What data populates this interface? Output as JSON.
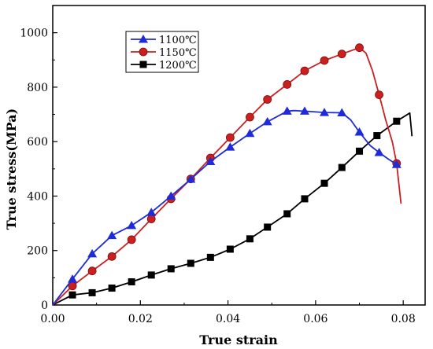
{
  "chart_data": {
    "type": "line",
    "xlabel": "True strain",
    "ylabel": "True stress(MPa)",
    "xlim": [
      0.0,
      0.085
    ],
    "ylim": [
      0,
      1100
    ],
    "x_ticks": [
      0.0,
      0.02,
      0.04,
      0.06,
      0.08
    ],
    "x_tick_labels": [
      "0.00",
      "0.02",
      "0.04",
      "0.06",
      "0.08"
    ],
    "y_ticks": [
      0,
      200,
      400,
      600,
      800,
      1000
    ],
    "y_tick_labels": [
      "0",
      "200",
      "400",
      "600",
      "800",
      "1000"
    ],
    "legend_position": "top-left",
    "series": [
      {
        "name": "1100℃",
        "color": "#1f2bd6",
        "marker": "triangle",
        "line": [
          [
            0.0,
            0
          ],
          [
            0.0045,
            95
          ],
          [
            0.009,
            188
          ],
          [
            0.0135,
            255
          ],
          [
            0.018,
            292
          ],
          [
            0.0225,
            340
          ],
          [
            0.027,
            400
          ],
          [
            0.0315,
            462
          ],
          [
            0.036,
            527
          ],
          [
            0.0405,
            580
          ],
          [
            0.045,
            630
          ],
          [
            0.049,
            673
          ],
          [
            0.0535,
            712
          ],
          [
            0.055,
            714
          ],
          [
            0.0575,
            712
          ],
          [
            0.062,
            707
          ],
          [
            0.066,
            706
          ],
          [
            0.068,
            680
          ],
          [
            0.07,
            635
          ],
          [
            0.0725,
            585
          ],
          [
            0.0745,
            560
          ],
          [
            0.0765,
            537
          ],
          [
            0.0785,
            516
          ]
        ],
        "markers": [
          [
            0.0045,
            95
          ],
          [
            0.009,
            188
          ],
          [
            0.0135,
            255
          ],
          [
            0.018,
            292
          ],
          [
            0.0225,
            340
          ],
          [
            0.027,
            400
          ],
          [
            0.0315,
            462
          ],
          [
            0.036,
            527
          ],
          [
            0.0405,
            580
          ],
          [
            0.045,
            630
          ],
          [
            0.049,
            673
          ],
          [
            0.0535,
            712
          ],
          [
            0.0575,
            712
          ],
          [
            0.062,
            707
          ],
          [
            0.066,
            706
          ],
          [
            0.07,
            635
          ],
          [
            0.0745,
            560
          ],
          [
            0.0785,
            516
          ]
        ]
      },
      {
        "name": "1150℃",
        "color": "#cc2020",
        "marker": "circle",
        "line": [
          [
            0.0,
            0
          ],
          [
            0.0045,
            70
          ],
          [
            0.009,
            125
          ],
          [
            0.0135,
            178
          ],
          [
            0.018,
            240
          ],
          [
            0.0225,
            316
          ],
          [
            0.027,
            390
          ],
          [
            0.0315,
            463
          ],
          [
            0.036,
            540
          ],
          [
            0.0405,
            615
          ],
          [
            0.045,
            690
          ],
          [
            0.049,
            755
          ],
          [
            0.0535,
            810
          ],
          [
            0.0575,
            860
          ],
          [
            0.062,
            898
          ],
          [
            0.066,
            922
          ],
          [
            0.07,
            945
          ],
          [
            0.0715,
            925
          ],
          [
            0.073,
            860
          ],
          [
            0.0745,
            772
          ],
          [
            0.076,
            680
          ],
          [
            0.0775,
            600
          ],
          [
            0.0785,
            520
          ],
          [
            0.0795,
            372
          ]
        ],
        "markers": [
          [
            0.0045,
            70
          ],
          [
            0.009,
            125
          ],
          [
            0.0135,
            178
          ],
          [
            0.018,
            240
          ],
          [
            0.0225,
            316
          ],
          [
            0.027,
            390
          ],
          [
            0.0315,
            463
          ],
          [
            0.036,
            540
          ],
          [
            0.0405,
            615
          ],
          [
            0.045,
            690
          ],
          [
            0.049,
            755
          ],
          [
            0.0535,
            810
          ],
          [
            0.0575,
            860
          ],
          [
            0.062,
            898
          ],
          [
            0.066,
            922
          ],
          [
            0.07,
            945
          ],
          [
            0.0745,
            772
          ],
          [
            0.0785,
            520
          ]
        ]
      },
      {
        "name": "1200℃",
        "color": "#000000",
        "marker": "square",
        "line": [
          [
            0.0,
            0
          ],
          [
            0.0045,
            37
          ],
          [
            0.009,
            45
          ],
          [
            0.0135,
            62
          ],
          [
            0.018,
            85
          ],
          [
            0.0225,
            110
          ],
          [
            0.027,
            133
          ],
          [
            0.0315,
            153
          ],
          [
            0.036,
            175
          ],
          [
            0.0405,
            205
          ],
          [
            0.045,
            243
          ],
          [
            0.049,
            286
          ],
          [
            0.0535,
            335
          ],
          [
            0.0575,
            390
          ],
          [
            0.062,
            447
          ],
          [
            0.066,
            505
          ],
          [
            0.07,
            565
          ],
          [
            0.074,
            622
          ],
          [
            0.0785,
            675
          ],
          [
            0.0815,
            705
          ],
          [
            0.082,
            620
          ]
        ],
        "markers": [
          [
            0.0045,
            37
          ],
          [
            0.009,
            45
          ],
          [
            0.0135,
            62
          ],
          [
            0.018,
            85
          ],
          [
            0.0225,
            110
          ],
          [
            0.027,
            133
          ],
          [
            0.0315,
            153
          ],
          [
            0.036,
            175
          ],
          [
            0.0405,
            205
          ],
          [
            0.045,
            243
          ],
          [
            0.049,
            286
          ],
          [
            0.0535,
            335
          ],
          [
            0.0575,
            390
          ],
          [
            0.062,
            447
          ],
          [
            0.066,
            505
          ],
          [
            0.07,
            565
          ],
          [
            0.074,
            622
          ],
          [
            0.0785,
            675
          ]
        ]
      }
    ]
  }
}
